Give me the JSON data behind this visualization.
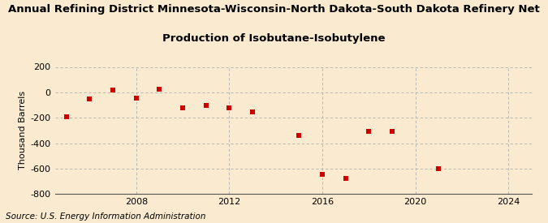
{
  "title_line1": "Annual Refining District Minnesota-Wisconsin-North Dakota-South Dakota Refinery Net",
  "title_line2": "Production of Isobutane-Isobutylene",
  "ylabel": "Thousand Barrels",
  "source": "Source: U.S. Energy Information Administration",
  "background_color": "#faebd0",
  "plot_bg_color": "#faebd0",
  "marker_color": "#cc0000",
  "years": [
    2005,
    2006,
    2007,
    2008,
    2009,
    2010,
    2011,
    2012,
    2013,
    2015,
    2016,
    2017,
    2018,
    2019,
    2021
  ],
  "values": [
    -195,
    -50,
    15,
    -45,
    25,
    -125,
    -100,
    -120,
    -155,
    -340,
    -645,
    -680,
    -310,
    -305,
    -600
  ],
  "ylim": [
    -800,
    200
  ],
  "xlim": [
    2004.5,
    2025
  ],
  "yticks": [
    200,
    0,
    -200,
    -400,
    -600,
    -800
  ],
  "xticks": [
    2008,
    2012,
    2016,
    2020,
    2024
  ],
  "grid_color": "#b0b0b0",
  "title_fontsize": 9.5,
  "axis_fontsize": 8,
  "source_fontsize": 7.5
}
